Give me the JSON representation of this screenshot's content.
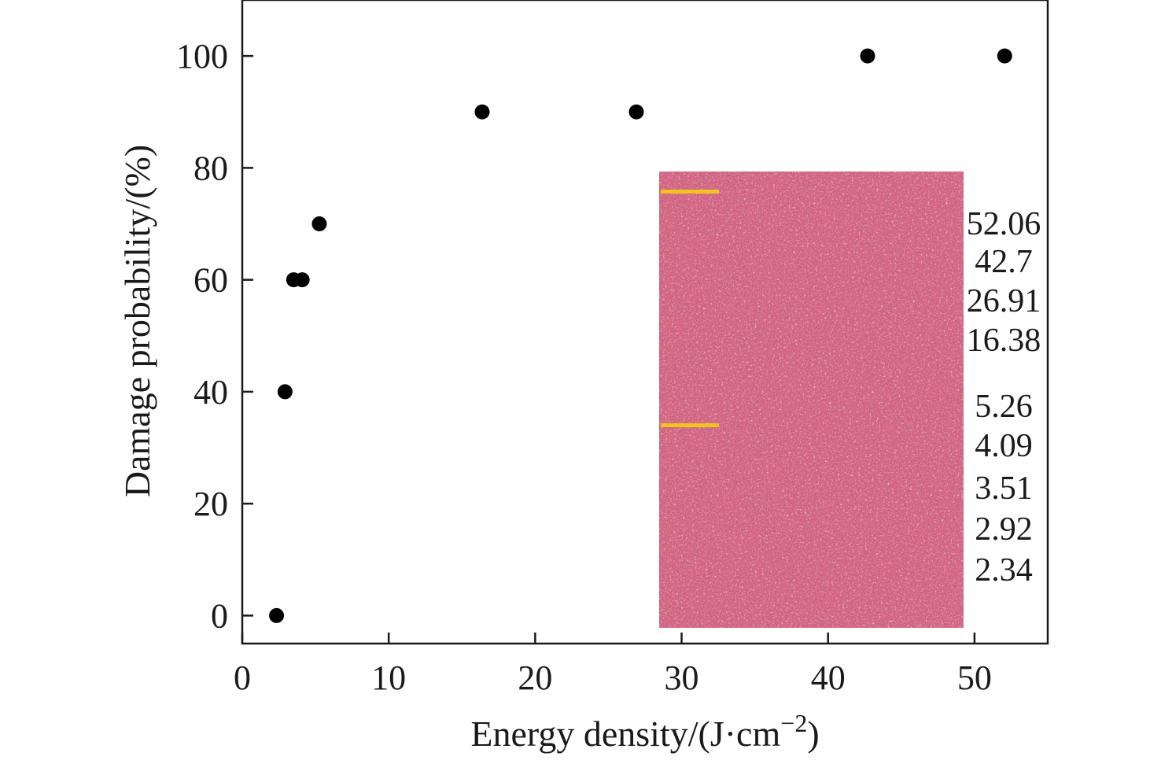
{
  "chart_data": {
    "type": "scatter",
    "title": "",
    "xlabel": "Energy density/(J·cm",
    "xlabel_sup": "−2",
    "xlabel_suffix": ")",
    "ylabel": "Damage probability/(%)",
    "xlim": [
      0,
      55
    ],
    "ylim": [
      -5,
      110
    ],
    "xticks": [
      0,
      10,
      20,
      30,
      40,
      50
    ],
    "yticks": [
      0,
      20,
      40,
      60,
      80,
      100
    ],
    "grid": false,
    "marker_color": "#000000",
    "series": [
      {
        "x": [
          2.34,
          2.92,
          3.51,
          4.09,
          5.26,
          16.38,
          26.91,
          42.7,
          52.06
        ],
        "y": [
          0,
          40,
          60,
          60,
          70,
          90,
          90,
          100,
          100
        ]
      }
    ],
    "inset": {
      "description_color": "#d4607f",
      "marker_color": "#f2c21d",
      "labels": [
        "52.06",
        "42.7",
        "26.91",
        "16.38",
        "5.26",
        "4.09",
        "3.51",
        "2.92",
        "2.34"
      ]
    }
  }
}
